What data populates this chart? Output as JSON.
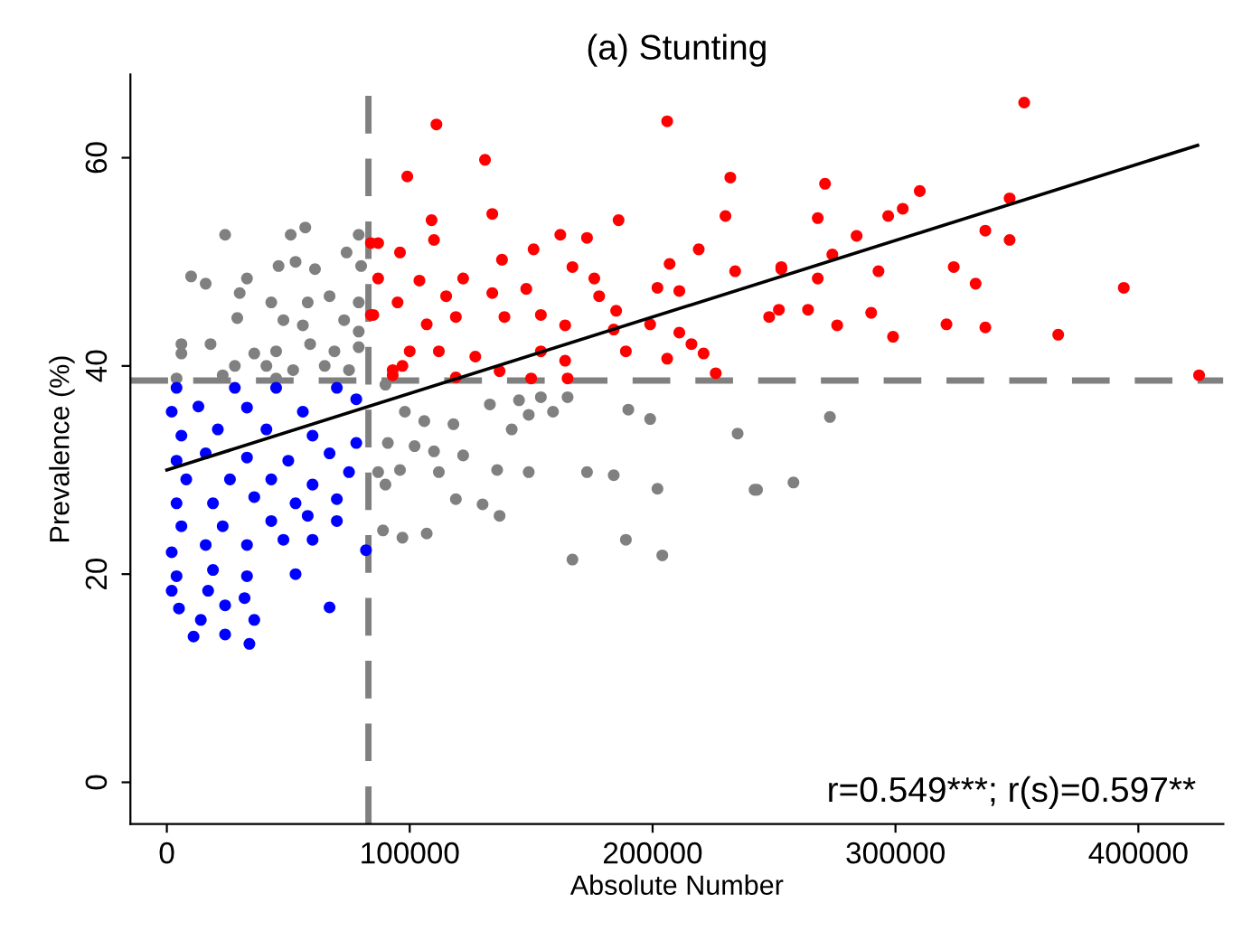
{
  "chart_data": {
    "type": "scatter",
    "title": "(a) Stunting",
    "xlabel": "Absolute Number",
    "ylabel": "Prevalence (%)",
    "xlim": [
      -15000,
      435000
    ],
    "ylim": [
      -4,
      68
    ],
    "xticks": [
      0,
      100000,
      200000,
      300000,
      400000
    ],
    "yticks": [
      0,
      20,
      40,
      60
    ],
    "grid": false,
    "legend": false,
    "marker": "circle",
    "annotations": [
      "r=0.549***; r(s)=0.597**"
    ],
    "ref_lines": [
      {
        "axis": "x",
        "value": 83000,
        "label": null,
        "color": "#808080",
        "line_style": "dashed"
      },
      {
        "axis": "y",
        "value": 38.6,
        "label": null,
        "color": "#808080",
        "line_style": "dashed"
      }
    ],
    "series": [
      {
        "color": "#808080",
        "x": [
          273000,
          258000,
          243000,
          90000,
          98000,
          106000,
          118000,
          133000,
          145000,
          154000,
          165000,
          159000,
          149000,
          190000,
          199000,
          142000,
          91000,
          102000,
          110000,
          122000,
          235000,
          87000,
          96000,
          112000,
          136000,
          149000,
          173000,
          184000,
          202000,
          242000,
          90000,
          119000,
          130000,
          89000,
          97000,
          107000,
          137000,
          189000,
          167000,
          204000,
          24000,
          51000,
          57000,
          79000,
          10000,
          16000,
          33000,
          46000,
          53000,
          61000,
          74000,
          80000,
          30000,
          43000,
          58000,
          67000,
          79000,
          29000,
          48000,
          56000,
          73000,
          79000,
          6000,
          18000,
          36000,
          45000,
          59000,
          69000,
          79000,
          6000,
          28000,
          41000,
          52000,
          65000,
          75000,
          4000,
          23000,
          45000
        ],
        "values": [
          35.1,
          28.8,
          28.1,
          38.2,
          35.6,
          34.7,
          34.4,
          36.3,
          36.7,
          37.0,
          37.0,
          35.6,
          35.3,
          35.8,
          34.9,
          33.9,
          32.6,
          32.3,
          31.8,
          31.4,
          33.5,
          29.8,
          30.0,
          29.8,
          30.0,
          29.8,
          29.8,
          29.5,
          28.2,
          28.1,
          28.6,
          27.2,
          26.7,
          24.2,
          23.5,
          23.9,
          25.6,
          23.3,
          21.4,
          21.8,
          52.6,
          52.6,
          53.3,
          52.6,
          48.6,
          47.9,
          48.4,
          49.6,
          50.0,
          49.3,
          50.9,
          49.6,
          47.0,
          46.1,
          46.1,
          46.7,
          46.1,
          44.6,
          44.4,
          43.9,
          44.4,
          43.3,
          42.1,
          42.1,
          41.2,
          41.4,
          42.1,
          41.4,
          41.8,
          41.2,
          40.0,
          40.0,
          39.6,
          40.0,
          39.6,
          38.8,
          39.1,
          38.8
        ]
      },
      {
        "color": "#0000ff",
        "x": [
          4000,
          28000,
          45000,
          70000,
          2000,
          13000,
          33000,
          56000,
          78000,
          6000,
          21000,
          41000,
          60000,
          78000,
          4000,
          16000,
          33000,
          50000,
          67000,
          75000,
          8000,
          26000,
          43000,
          60000,
          4000,
          19000,
          36000,
          53000,
          70000,
          6000,
          23000,
          43000,
          58000,
          70000,
          2000,
          16000,
          33000,
          48000,
          60000,
          82000,
          4000,
          19000,
          33000,
          53000,
          2000,
          17000,
          32000,
          5000,
          24000,
          67000,
          14000,
          36000,
          11000,
          24000,
          34000
        ],
        "values": [
          37.9,
          37.9,
          37.9,
          37.9,
          35.6,
          36.1,
          36.0,
          35.6,
          36.8,
          33.3,
          33.9,
          33.9,
          33.3,
          32.6,
          30.9,
          31.6,
          31.2,
          30.9,
          31.6,
          29.8,
          29.1,
          29.1,
          29.1,
          28.6,
          26.8,
          26.8,
          27.4,
          26.8,
          27.2,
          24.6,
          24.6,
          25.1,
          25.6,
          25.1,
          22.1,
          22.8,
          22.8,
          23.3,
          23.3,
          22.3,
          19.8,
          20.4,
          19.8,
          20.0,
          18.4,
          18.4,
          17.7,
          16.7,
          17.0,
          16.8,
          15.6,
          15.6,
          14.0,
          14.2,
          13.3
        ]
      },
      {
        "color": "#ff0000",
        "x": [
          353000,
          271000,
          310000,
          303000,
          297000,
          268000,
          347000,
          284000,
          337000,
          347000,
          274000,
          253000,
          268000,
          293000,
          324000,
          333000,
          394000,
          248000,
          252000,
          264000,
          276000,
          290000,
          299000,
          321000,
          337000,
          367000,
          425000,
          111000,
          206000,
          131000,
          99000,
          232000,
          87000,
          134000,
          230000,
          186000,
          109000,
          162000,
          173000,
          151000,
          219000,
          110000,
          84000,
          96000,
          138000,
          207000,
          234000,
          253000,
          167000,
          122000,
          87000,
          176000,
          104000,
          134000,
          115000,
          95000,
          202000,
          211000,
          178000,
          148000,
          84000,
          107000,
          119000,
          139000,
          154000,
          185000,
          164000,
          184000,
          199000,
          211000,
          100000,
          112000,
          127000,
          154000,
          164000,
          189000,
          206000,
          216000,
          221000,
          226000,
          137000,
          150000,
          165000,
          119000,
          97000,
          93000,
          85000,
          93000
        ],
        "values": [
          65.3,
          57.5,
          56.8,
          55.1,
          54.4,
          54.2,
          56.1,
          52.5,
          53.0,
          52.1,
          50.7,
          49.5,
          48.4,
          49.1,
          49.5,
          47.9,
          47.5,
          44.7,
          45.4,
          45.4,
          43.9,
          45.1,
          42.8,
          44.0,
          43.7,
          43.0,
          39.1,
          63.2,
          63.5,
          59.8,
          58.2,
          58.1,
          51.8,
          54.6,
          54.4,
          54.0,
          54.0,
          52.6,
          52.3,
          51.2,
          51.2,
          52.1,
          51.8,
          50.9,
          50.2,
          49.8,
          49.1,
          49.3,
          49.5,
          48.4,
          48.4,
          48.4,
          48.2,
          47.0,
          46.7,
          46.1,
          47.5,
          47.2,
          46.7,
          47.4,
          44.9,
          44.0,
          44.7,
          44.7,
          44.9,
          45.3,
          43.9,
          43.5,
          44.0,
          43.2,
          41.4,
          41.4,
          40.9,
          41.4,
          40.5,
          41.4,
          40.7,
          42.1,
          41.2,
          39.3,
          39.5,
          38.8,
          38.8,
          38.9,
          40.0,
          39.1,
          44.9,
          39.6
        ]
      },
      {
        "type": "line",
        "marker": "none",
        "color": "#000000",
        "x": [
          0,
          424400
        ],
        "values": [
          30.0,
          61.2
        ]
      }
    ]
  }
}
